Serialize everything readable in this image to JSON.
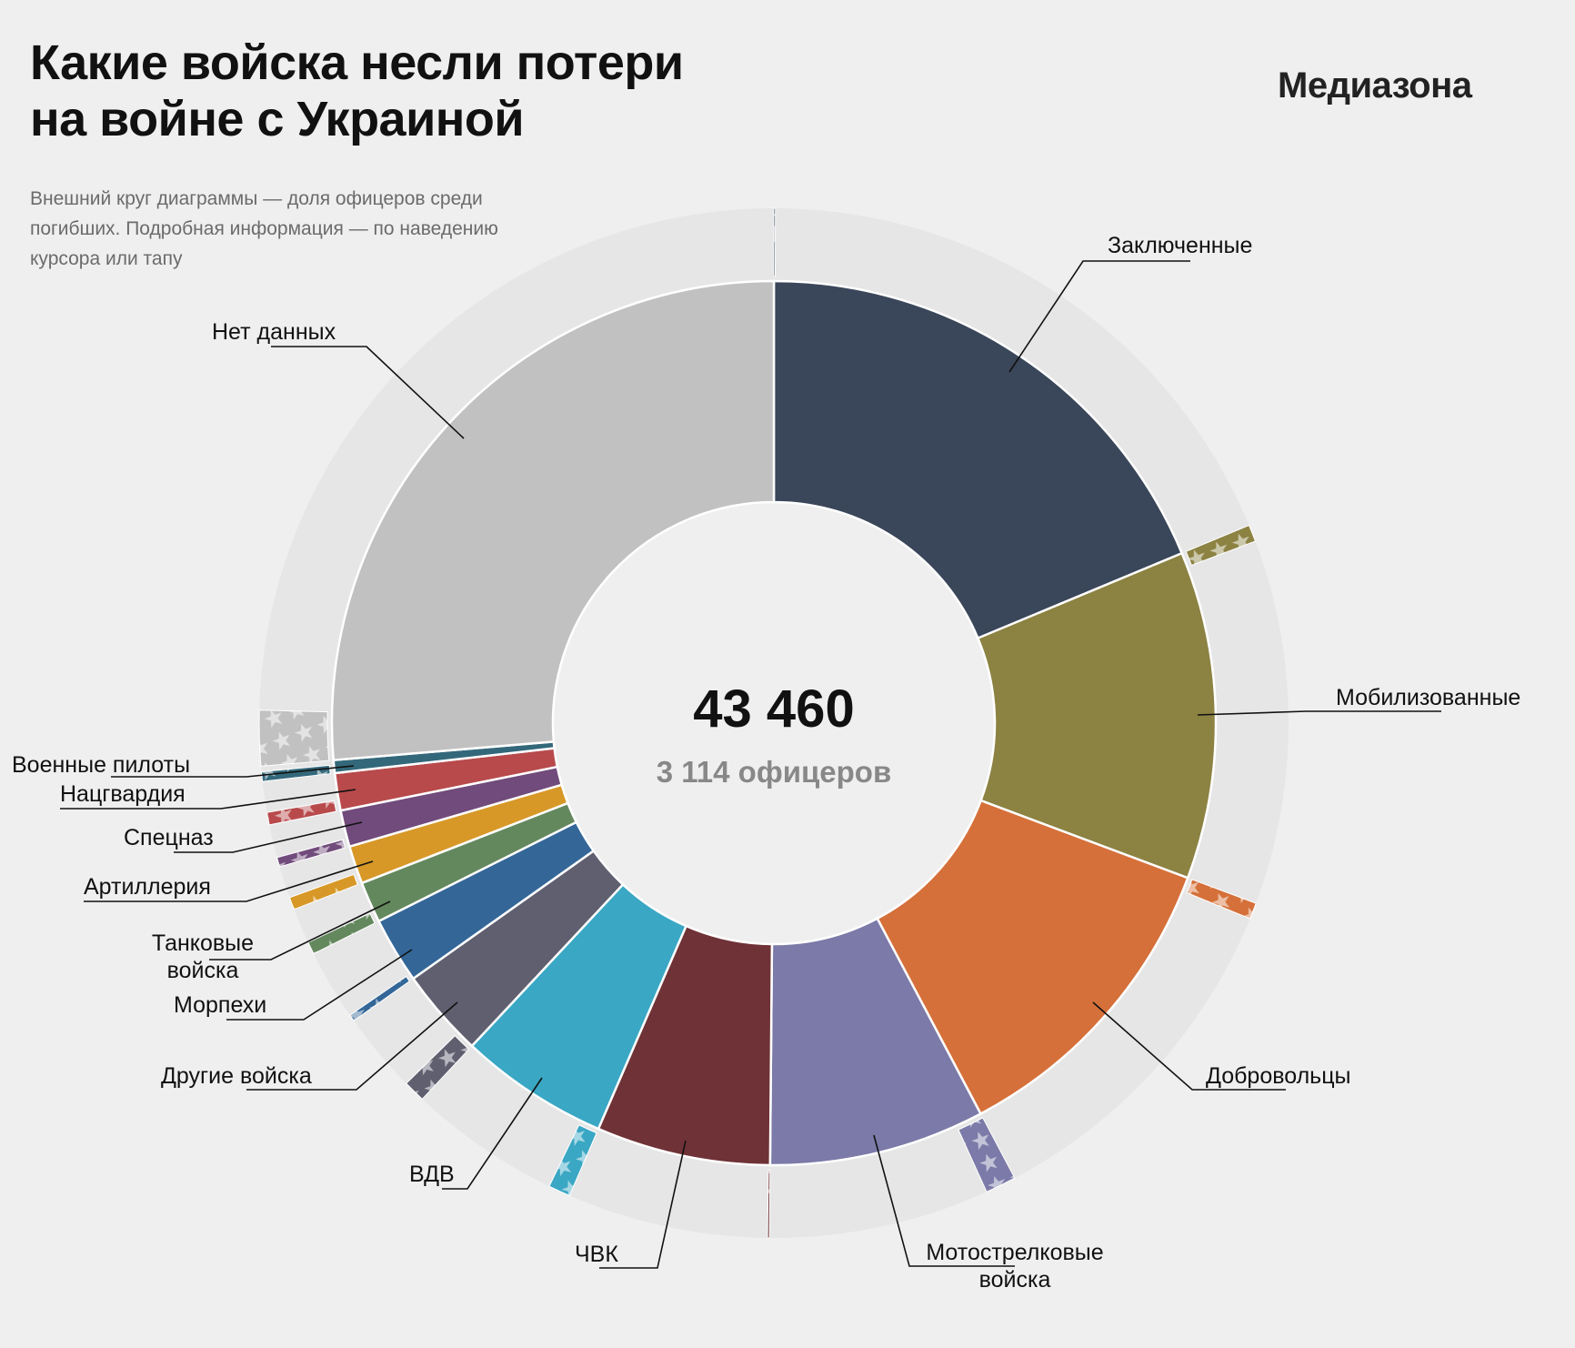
{
  "header": {
    "title_line1": "Какие войска несли потери",
    "title_line2": "на войне с Украиной",
    "logo": "Медиазона",
    "subtitle": "Внешний круг диаграммы — доля офицеров среди погибших. Подробная информация — по наведению курсора или тапу"
  },
  "chart_data": {
    "type": "pie",
    "variant": "donut with outer officer-share ring",
    "center_total": "43 460",
    "center_officers": "3 114 офицеров",
    "total": 43460,
    "officers_total": 3114,
    "categories": [
      "Заключенные",
      "Мобилизованные",
      "Добровольцы",
      "Мотострелковые войска",
      "ЧВК",
      "ВДВ",
      "Другие войска",
      "Морпехи",
      "Танковые войска",
      "Артиллерия",
      "Спецназ",
      "Нацгвардия",
      "Военные пилоты",
      "Нет данных"
    ],
    "series": [
      {
        "name": "погибшие",
        "values": [
          8137,
          5203,
          5022,
          3428,
          2765,
          2378,
          1400,
          1050,
          652,
          604,
          580,
          592,
          205,
          11445
        ]
      },
      {
        "name": "офицеры",
        "values": [
          5,
          230,
          220,
          420,
          25,
          300,
          300,
          90,
          170,
          170,
          130,
          170,
          130,
          754
        ]
      }
    ],
    "colors": [
      "#3a4659",
      "#8c8242",
      "#d5703a",
      "#7b7aa8",
      "#6f3236",
      "#3aa7c4",
      "#5f5f70",
      "#346798",
      "#64885e",
      "#d79828",
      "#714b7b",
      "#b84a4c",
      "#33687a",
      "#c1c1c1"
    ],
    "labels": {
      "zk": "Заключенные",
      "mob": "Мобилизованные",
      "vol": "Добровольцы",
      "moto1": "Мотострелковые",
      "moto2": "войска",
      "chvk": "ЧВК",
      "vdv": "ВДВ",
      "other": "Другие войска",
      "marines": "Морпехи",
      "tank1": "Танковые",
      "tank2": "войска",
      "art": "Артиллерия",
      "spec": "Спецназ",
      "nats": "Нацгвардия",
      "pilots": "Военные пилоты",
      "nodata": "Нет данных"
    },
    "background_color": "#efefef",
    "ring_color": "#e6e6e6",
    "officer_pattern_icon": "star-icon"
  }
}
